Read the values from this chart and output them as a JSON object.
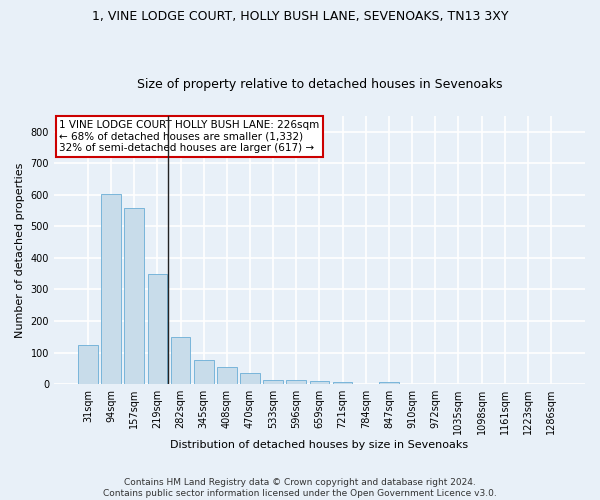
{
  "title_line1": "1, VINE LODGE COURT, HOLLY BUSH LANE, SEVENOAKS, TN13 3XY",
  "title_line2": "Size of property relative to detached houses in Sevenoaks",
  "xlabel": "Distribution of detached houses by size in Sevenoaks",
  "ylabel": "Number of detached properties",
  "categories": [
    "31sqm",
    "94sqm",
    "157sqm",
    "219sqm",
    "282sqm",
    "345sqm",
    "408sqm",
    "470sqm",
    "533sqm",
    "596sqm",
    "659sqm",
    "721sqm",
    "784sqm",
    "847sqm",
    "910sqm",
    "972sqm",
    "1035sqm",
    "1098sqm",
    "1161sqm",
    "1223sqm",
    "1286sqm"
  ],
  "values": [
    125,
    603,
    557,
    350,
    150,
    77,
    55,
    34,
    14,
    13,
    10,
    6,
    0,
    8,
    0,
    0,
    0,
    0,
    0,
    0,
    0
  ],
  "bar_color": "#c8dcea",
  "bar_edge_color": "#6aaed6",
  "property_label": "1 VINE LODGE COURT HOLLY BUSH LANE: 226sqm",
  "annotation_line2": "← 68% of detached houses are smaller (1,332)",
  "annotation_line3": "32% of semi-detached houses are larger (617) →",
  "annotation_box_color": "#ffffff",
  "annotation_box_edge": "#cc0000",
  "vline_x": 3.45,
  "ylim": [
    0,
    850
  ],
  "yticks": [
    0,
    100,
    200,
    300,
    400,
    500,
    600,
    700,
    800
  ],
  "footer_line1": "Contains HM Land Registry data © Crown copyright and database right 2024.",
  "footer_line2": "Contains public sector information licensed under the Open Government Licence v3.0.",
  "bg_color": "#e8f0f8",
  "plot_bg_color": "#e8f0f8",
  "grid_color": "#ffffff",
  "title_fontsize": 9,
  "subtitle_fontsize": 9,
  "axis_label_fontsize": 8,
  "tick_fontsize": 7,
  "footer_fontsize": 6.5,
  "ann_fontsize": 7.5
}
